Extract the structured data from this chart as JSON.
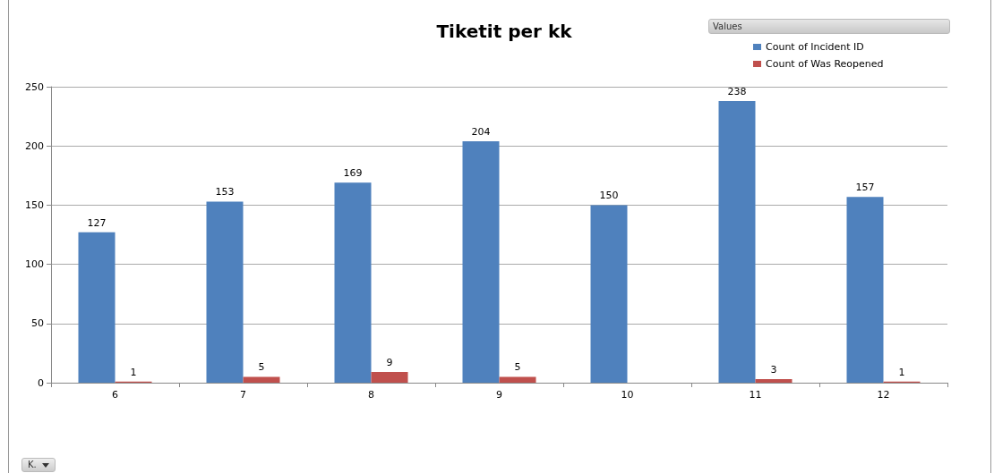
{
  "chart_data": {
    "type": "bar",
    "title": "Tiketit per kk",
    "legend_title": "Values",
    "categories": [
      "6",
      "7",
      "8",
      "9",
      "10",
      "11",
      "12"
    ],
    "series": [
      {
        "name": "Count of Incident ID",
        "color": "#4f81bd",
        "values": [
          127,
          153,
          169,
          204,
          150,
          238,
          157
        ]
      },
      {
        "name": "Count of Was Reopened",
        "color": "#c0504d",
        "values": [
          1,
          5,
          9,
          5,
          null,
          3,
          1
        ]
      }
    ],
    "ylim": [
      0,
      250
    ],
    "yticks": [
      0,
      50,
      100,
      150,
      200,
      250
    ],
    "grid": "y",
    "legend": "top right",
    "data_labels": true,
    "annotations": [
      "K."
    ]
  }
}
